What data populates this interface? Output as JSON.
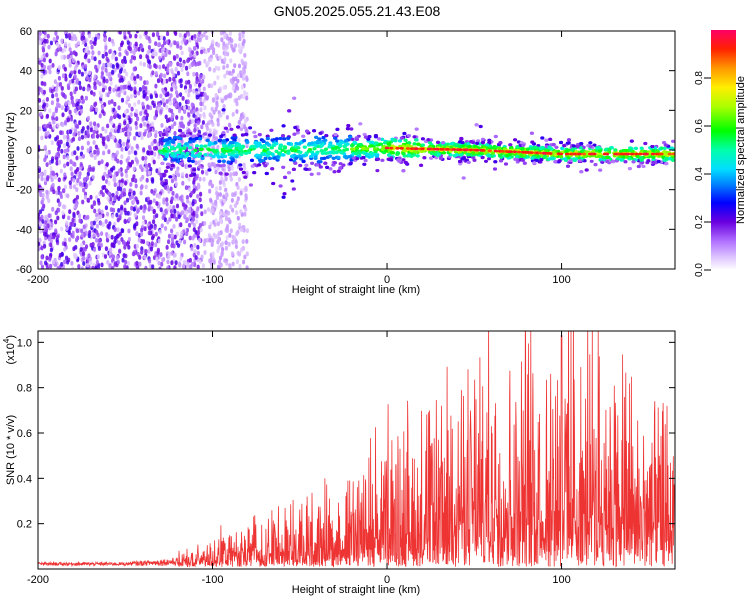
{
  "title": "GN05.2025.055.21.43.E08",
  "chart_data": [
    {
      "type": "heatmap",
      "xlabel": "Height of straight line (km)",
      "ylabel": "Frequency (Hz)",
      "xlim": [
        -200,
        165
      ],
      "ylim": [
        -60,
        60
      ],
      "xticks": [
        -200,
        -100,
        0,
        100
      ],
      "yticks": [
        -60,
        -40,
        -20,
        0,
        20,
        40,
        60
      ],
      "colorbar": {
        "label": "Normalized spectral amplitude",
        "range": [
          0,
          1
        ],
        "ticks": [
          0.0,
          0.2,
          0.4,
          0.6,
          0.8
        ],
        "colors": [
          "#ffffff",
          "#cc99ff",
          "#7a00e6",
          "#0000ff",
          "#00aaff",
          "#00ffcc",
          "#00ff00",
          "#ccff00",
          "#ffff00",
          "#ff9900",
          "#ff0000",
          "#ff0066"
        ]
      },
      "description_values": {
        "noise_region_x": [
          -200,
          -105
        ],
        "signal_start_x": -130,
        "signal_center_freq": [
          {
            "x": -130,
            "y": 0
          },
          {
            "x": -60,
            "y": 0
          },
          {
            "x": 0,
            "y": 1
          },
          {
            "x": 50,
            "y": 0
          },
          {
            "x": 100,
            "y": -2
          },
          {
            "x": 165,
            "y": -2
          }
        ]
      }
    },
    {
      "type": "line",
      "xlabel": "Height of straight line (km)",
      "ylabel": "SNR (10 * v/v)",
      "multiplier": "(x10",
      "multiplier_exp": "4",
      "multiplier_close": ")",
      "xlim": [
        -200,
        165
      ],
      "ylim": [
        0,
        1.05
      ],
      "xticks": [
        -200,
        -100,
        0,
        100
      ],
      "yticks": [
        0.2,
        0.4,
        0.6,
        0.8,
        1.0
      ],
      "ytick_labels": [
        "0.2",
        "0.4",
        "0.6",
        "0.8",
        "1.0"
      ],
      "color": "#ee3333",
      "envelope": [
        {
          "x": -200,
          "y": 0.03
        },
        {
          "x": -150,
          "y": 0.03
        },
        {
          "x": -120,
          "y": 0.05
        },
        {
          "x": -100,
          "y": 0.12
        },
        {
          "x": -80,
          "y": 0.18
        },
        {
          "x": -60,
          "y": 0.25
        },
        {
          "x": -40,
          "y": 0.3
        },
        {
          "x": -20,
          "y": 0.38
        },
        {
          "x": 0,
          "y": 0.55
        },
        {
          "x": 20,
          "y": 0.6
        },
        {
          "x": 40,
          "y": 0.7
        },
        {
          "x": 60,
          "y": 0.85
        },
        {
          "x": 80,
          "y": 0.88
        },
        {
          "x": 100,
          "y": 0.92
        },
        {
          "x": 120,
          "y": 0.85
        },
        {
          "x": 140,
          "y": 0.72
        },
        {
          "x": 155,
          "y": 0.55
        },
        {
          "x": 165,
          "y": 0.72
        }
      ],
      "peak": {
        "x": 100,
        "y": 1.03
      }
    }
  ]
}
